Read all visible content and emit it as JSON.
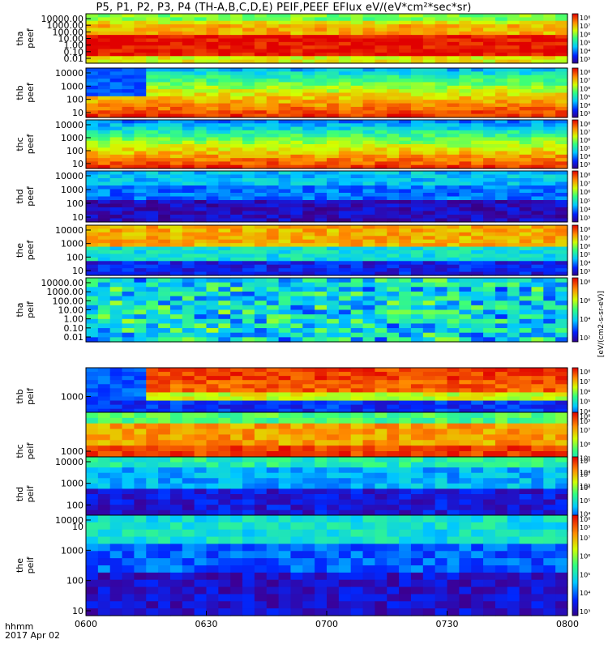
{
  "title": "P5, P1, P2, P3, P4 (TH-A,B,C,D,E) PEIF,PEEF EFlux eV/(eV*cm²*sec*sr)",
  "colorbar_unit": "[eV/(cm2-s-sr-eV)]",
  "footer": {
    "time_label": "hhmm",
    "date_label": "2017 Apr 02"
  },
  "chart_data": {
    "type": "heatmap",
    "x_ticks": [
      "0600",
      "0630",
      "0700",
      "0730",
      "0800"
    ],
    "xlim": [
      "0600",
      "0800"
    ],
    "panels": [
      {
        "name": "tha peef",
        "label_top": "tha",
        "label_bottom": "peef",
        "yticks": [
          "10000.00",
          "1000.00",
          "100.00",
          "10.00",
          "1.00",
          "0.10",
          "0.01"
        ],
        "cb_ticks": [
          "10⁸",
          "10⁷",
          "10⁶",
          "10⁵",
          "10⁴",
          "10³"
        ]
      },
      {
        "name": "thb peef",
        "label_top": "thb",
        "label_bottom": "peef",
        "yticks": [
          "10000",
          "1000",
          "100",
          "10"
        ],
        "cb_ticks": [
          "10⁸",
          "10⁷",
          "10⁶",
          "10⁵",
          "10⁴",
          "10³"
        ]
      },
      {
        "name": "thc peef",
        "label_top": "thc",
        "label_bottom": "peef",
        "yticks": [
          "10000",
          "1000",
          "100",
          "10"
        ],
        "cb_ticks": [
          "10⁸",
          "10⁷",
          "10⁶",
          "10⁵",
          "10⁴",
          "10³"
        ]
      },
      {
        "name": "thd peef",
        "label_top": "thd",
        "label_bottom": "peef",
        "yticks": [
          "10000",
          "1000",
          "100",
          "10"
        ],
        "cb_ticks": [
          "10⁸",
          "10⁷",
          "10⁶",
          "10⁵",
          "10⁴",
          "10³"
        ]
      },
      {
        "name": "the peef",
        "label_top": "the",
        "label_bottom": "peef",
        "yticks": [
          "10000",
          "1000",
          "100",
          "10"
        ],
        "cb_ticks": [
          "10⁸",
          "10⁷",
          "10⁶",
          "10⁵",
          "10⁴",
          "10³"
        ]
      },
      {
        "name": "tha peif",
        "label_top": "tha",
        "label_bottom": "peif",
        "yticks": [
          "10000.00",
          "1000.00",
          "100.00",
          "10.00",
          "1.00",
          "0.10",
          "0.01"
        ],
        "cb_ticks": [
          "10⁸",
          "10⁶",
          "10⁴",
          "10²"
        ]
      },
      {
        "name": "thb peif",
        "label_top": "thb",
        "label_bottom": "peif",
        "yticks": [
          "1000"
        ],
        "cb_ticks": [
          "10⁸",
          "10⁷",
          "10⁶",
          "10⁵",
          "10⁴",
          "10³"
        ]
      },
      {
        "name": "thc peif",
        "label_top": "thc",
        "label_bottom": "peif",
        "yticks": [
          "1000"
        ],
        "cb_ticks": [
          "10⁸",
          "10⁷",
          "10⁶",
          "10⁵",
          "10⁴",
          "10³"
        ]
      },
      {
        "name": "thd peif",
        "label_top": "thd",
        "label_bottom": "peif",
        "yticks": [
          "10000",
          "1000",
          "100",
          "10"
        ],
        "cb_ticks": [
          "10⁸",
          "10⁷",
          "10⁶",
          "10⁵",
          "10⁴",
          "10³"
        ]
      },
      {
        "name": "the peif",
        "label_top": "the",
        "label_bottom": "peif",
        "yticks": [
          "10000",
          "1000",
          "100",
          "10"
        ],
        "cb_ticks": [
          "10⁸",
          "10⁷",
          "10⁶",
          "10⁵",
          "10⁴",
          "10³"
        ]
      }
    ]
  }
}
